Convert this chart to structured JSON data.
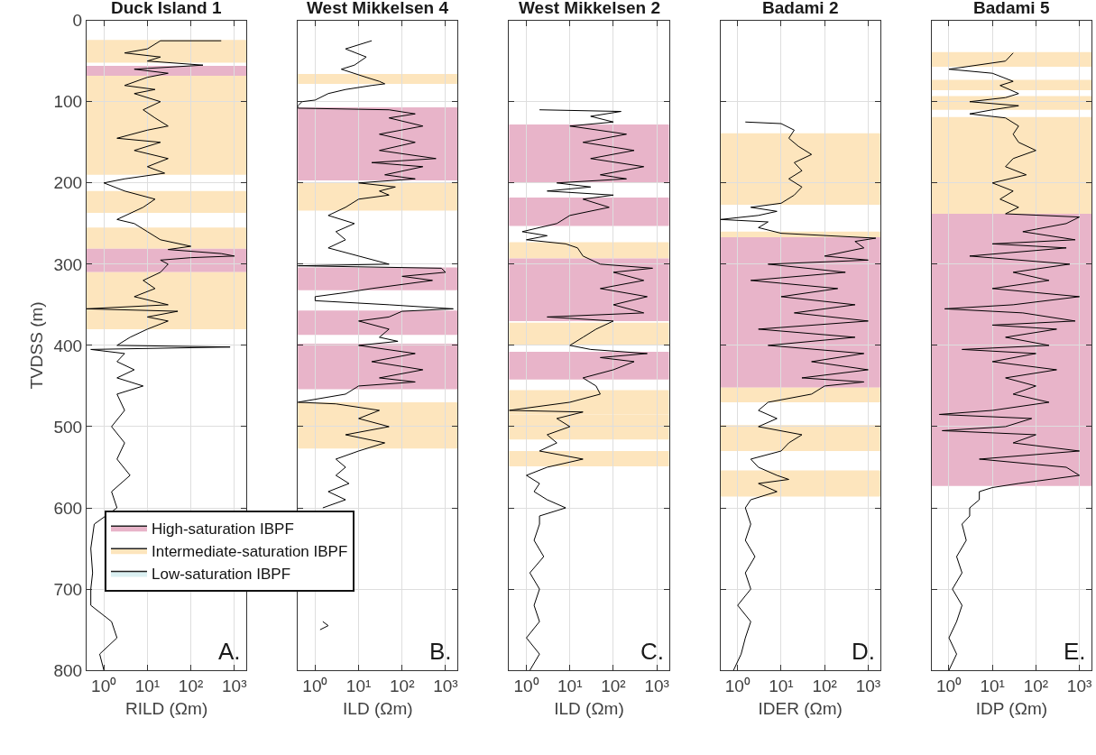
{
  "chart_data": [
    {
      "type": "line",
      "title": "Duck Island 1",
      "xlabel": "RILD (Ωm)",
      "ylabel": "TVDSS (m)",
      "xlim": [
        0.4,
        1900
      ],
      "xticks": [
        {
          "value": 1,
          "label": "10⁰"
        },
        {
          "value": 10,
          "label": "10¹"
        },
        {
          "value": 100,
          "label": "10²"
        },
        {
          "value": 1000,
          "label": "10³"
        }
      ],
      "ylim": [
        800,
        0
      ],
      "yticks": [
        0,
        100,
        200,
        300,
        400,
        500,
        600,
        700,
        800
      ],
      "log": "x",
      "grid": true,
      "legend": "bottom right",
      "annotations": [
        "A."
      ],
      "series": [
        {
          "color": "#000000",
          "x": [
            500,
            20,
            10,
            3,
            20,
            10,
            190,
            5,
            30,
            10,
            3,
            15,
            5,
            20,
            8,
            15,
            30,
            10,
            2,
            20,
            5,
            30,
            10,
            25,
            3,
            1,
            3,
            15,
            8,
            2,
            5,
            10,
            20,
            100,
            30,
            500,
            1000,
            100,
            20,
            30,
            20,
            8,
            15,
            5,
            30,
            0.4,
            50,
            10,
            30,
            10,
            4,
            2,
            800,
            0.5,
            3,
            2,
            5,
            2,
            8,
            2,
            3,
            1.5,
            3,
            2,
            4,
            1.5,
            2,
            0.6,
            0.5,
            0.55,
            0.5,
            0.5,
            1.5,
            2,
            0.8,
            1
          ],
          "values": [
            25,
            25,
            35,
            40,
            45,
            50,
            55,
            60,
            65,
            70,
            80,
            85,
            90,
            100,
            110,
            120,
            130,
            135,
            145,
            150,
            160,
            170,
            180,
            188,
            195,
            200,
            210,
            220,
            230,
            245,
            250,
            260,
            270,
            278,
            282,
            287,
            290,
            292,
            295,
            300,
            310,
            320,
            330,
            340,
            350,
            355,
            358,
            365,
            370,
            380,
            390,
            400,
            402,
            405,
            410,
            420,
            430,
            440,
            450,
            460,
            480,
            500,
            520,
            540,
            560,
            580,
            600,
            620,
            650,
            680,
            700,
            720,
            740,
            760,
            780,
            800
          ]
        },
        {
          "type": "area",
          "name": "High-saturation IBPF",
          "color": "#e8b4c9"
        },
        {
          "type": "area",
          "name": "Intermediate-saturation IBPF",
          "color": "#fde5bd"
        },
        {
          "type": "area",
          "name": "Low-saturation IBPF",
          "color": "#dbf0f2"
        }
      ],
      "bands": [
        {
          "axis": "y",
          "from": 24,
          "to": 52,
          "color": "#fde5bd"
        },
        {
          "axis": "y",
          "from": 56,
          "to": 68,
          "color": "#e8b4c9"
        },
        {
          "axis": "y",
          "from": 68,
          "to": 190,
          "color": "#fde5bd"
        },
        {
          "axis": "y",
          "from": 210,
          "to": 237,
          "color": "#fde5bd"
        },
        {
          "axis": "y",
          "from": 255,
          "to": 281,
          "color": "#fde5bd"
        },
        {
          "axis": "y",
          "from": 281,
          "to": 310,
          "color": "#e8b4c9"
        },
        {
          "axis": "y",
          "from": 310,
          "to": 380,
          "color": "#fde5bd"
        }
      ]
    },
    {
      "type": "line",
      "title": "West Mikkelsen 4",
      "xlabel": "ILD (Ωm)",
      "xlim": [
        0.4,
        1900
      ],
      "xticks": [
        {
          "value": 1,
          "label": "10⁰"
        },
        {
          "value": 10,
          "label": "10¹"
        },
        {
          "value": 100,
          "label": "10²"
        },
        {
          "value": 1000,
          "label": "10³"
        }
      ],
      "ylim": [
        800,
        0
      ],
      "yticks": [
        0,
        100,
        200,
        300,
        400,
        500,
        600,
        700,
        800
      ],
      "log": "x",
      "grid": true,
      "tick_labels": "x",
      "annotations": [
        "B."
      ],
      "series": [
        {
          "color": "#000000",
          "x": [
            20,
            5,
            15,
            8,
            4,
            15,
            30,
            40,
            20,
            5,
            2,
            1,
            0.5,
            0.4,
            0.4,
            50,
            200,
            50,
            300,
            30,
            200,
            30,
            600,
            20,
            300,
            40,
            200,
            10,
            70,
            30,
            50,
            10,
            5,
            2,
            8,
            3,
            5,
            2,
            10,
            50,
            0.4,
            800,
            1000,
            100,
            500,
            20,
            5,
            1,
            1,
            50,
            1500,
            100,
            50,
            10,
            50,
            30,
            80,
            10,
            200,
            20,
            300,
            30,
            200,
            10,
            5,
            0.4,
            3,
            30,
            10,
            50,
            5,
            40,
            10,
            3,
            5,
            3,
            6,
            2,
            5,
            1.5,
            null,
            1.5,
            2,
            1.3
          ],
          "values": [
            25,
            35,
            45,
            55,
            60,
            70,
            75,
            78,
            80,
            85,
            90,
            98,
            100,
            105,
            108,
            110,
            115,
            120,
            130,
            140,
            150,
            160,
            170,
            175,
            180,
            190,
            195,
            200,
            205,
            210,
            215,
            220,
            230,
            240,
            250,
            260,
            270,
            280,
            290,
            300,
            302,
            305,
            310,
            315,
            320,
            330,
            335,
            340,
            345,
            350,
            355,
            358,
            365,
            370,
            380,
            390,
            395,
            400,
            410,
            420,
            430,
            440,
            445,
            450,
            460,
            470,
            472,
            480,
            490,
            500,
            510,
            520,
            530,
            540,
            550,
            560,
            570,
            580,
            590,
            600,
            null,
            740,
            745,
            750
          ]
        }
      ],
      "bands": [
        {
          "axis": "y",
          "from": 66,
          "to": 78,
          "color": "#fde5bd"
        },
        {
          "axis": "y",
          "from": 107,
          "to": 197,
          "color": "#e8b4c9"
        },
        {
          "axis": "y",
          "from": 200,
          "to": 234,
          "color": "#fde5bd"
        },
        {
          "axis": "y",
          "from": 304,
          "to": 332,
          "color": "#e8b4c9"
        },
        {
          "axis": "y",
          "from": 357,
          "to": 387,
          "color": "#e8b4c9"
        },
        {
          "axis": "y",
          "from": 398,
          "to": 454,
          "color": "#e8b4c9"
        },
        {
          "axis": "y",
          "from": 470,
          "to": 527,
          "color": "#fde5bd"
        }
      ]
    },
    {
      "type": "line",
      "title": "West Mikkelsen 2",
      "xlabel": "ILD (Ωm)",
      "xlim": [
        0.4,
        1900
      ],
      "xticks": [
        {
          "value": 1,
          "label": "10⁰"
        },
        {
          "value": 10,
          "label": "10¹"
        },
        {
          "value": 100,
          "label": "10²"
        },
        {
          "value": 1000,
          "label": "10³"
        }
      ],
      "ylim": [
        800,
        0
      ],
      "yticks": [
        0,
        100,
        200,
        300,
        400,
        500,
        600,
        700,
        800
      ],
      "log": "x",
      "grid": true,
      "tick_labels": "x",
      "annotations": [
        "C."
      ],
      "series": [
        {
          "color": "#000000",
          "x": [
            2,
            150,
            30,
            100,
            10,
            200,
            20,
            300,
            30,
            500,
            50,
            200,
            5,
            30,
            3,
            100,
            20,
            80,
            10,
            5,
            2,
            0.8,
            3,
            1,
            8,
            15,
            20,
            50,
            800,
            100,
            500,
            50,
            600,
            100,
            500,
            3,
            100,
            40,
            20,
            10,
            30,
            600,
            50,
            300,
            100,
            20,
            40,
            50,
            10,
            0.4,
            20,
            5,
            10,
            3,
            5,
            2,
            20,
            3,
            1,
            2,
            1.5,
            3,
            8,
            2,
            2,
            1.5,
            2.5,
            1.2,
            2,
            1.5,
            2,
            1,
            2,
            1.2
          ],
          "values": [
            110,
            112,
            118,
            125,
            130,
            140,
            150,
            160,
            170,
            180,
            190,
            195,
            200,
            205,
            210,
            215,
            220,
            230,
            240,
            250,
            255,
            260,
            265,
            270,
            275,
            280,
            290,
            300,
            305,
            310,
            320,
            330,
            340,
            350,
            360,
            365,
            370,
            380,
            390,
            400,
            405,
            410,
            415,
            420,
            430,
            440,
            450,
            460,
            470,
            480,
            482,
            490,
            500,
            510,
            520,
            530,
            540,
            550,
            560,
            570,
            580,
            590,
            600,
            610,
            620,
            640,
            660,
            680,
            700,
            720,
            740,
            760,
            780,
            800
          ]
        }
      ],
      "bands": [
        {
          "axis": "y",
          "from": 128,
          "to": 199,
          "color": "#e8b4c9"
        },
        {
          "axis": "y",
          "from": 218,
          "to": 253,
          "color": "#e8b4c9"
        },
        {
          "axis": "y",
          "from": 273,
          "to": 293,
          "color": "#fde5bd"
        },
        {
          "axis": "y",
          "from": 293,
          "to": 370,
          "color": "#e8b4c9"
        },
        {
          "axis": "y",
          "from": 372,
          "to": 400,
          "color": "#fde5bd"
        },
        {
          "axis": "y",
          "from": 408,
          "to": 442,
          "color": "#e8b4c9"
        },
        {
          "axis": "y",
          "from": 455,
          "to": 485,
          "color": "#fde5bd"
        },
        {
          "axis": "y",
          "from": 485,
          "to": 516,
          "color": "#fde5bd"
        },
        {
          "axis": "y",
          "from": 530,
          "to": 549,
          "color": "#fde5bd"
        }
      ]
    },
    {
      "type": "line",
      "title": "Badami 2",
      "xlabel": "IDER (Ωm)",
      "xlim": [
        0.4,
        1900
      ],
      "xticks": [
        {
          "value": 1,
          "label": "10⁰"
        },
        {
          "value": 10,
          "label": "10¹"
        },
        {
          "value": 100,
          "label": "10²"
        },
        {
          "value": 1000,
          "label": "10³"
        }
      ],
      "ylim": [
        800,
        0
      ],
      "yticks": [
        0,
        100,
        200,
        300,
        400,
        500,
        600,
        700,
        800
      ],
      "log": "x",
      "grid": true,
      "tick_labels": "x",
      "annotations": [
        "D."
      ],
      "series": [
        {
          "color": "#000000",
          "x": [
            1.5,
            10,
            20,
            15,
            25,
            50,
            20,
            30,
            15,
            30,
            20,
            10,
            2,
            8,
            3,
            0.4,
            5,
            3,
            10,
            1500,
            500,
            800,
            100,
            1000,
            5,
            300,
            2,
            200,
            10,
            500,
            20,
            1000,
            3,
            500,
            5,
            800,
            50,
            1000,
            30,
            800,
            100,
            50,
            5,
            3,
            8,
            3,
            30,
            15,
            10,
            2,
            3,
            8,
            15,
            3,
            8,
            2,
            1.5,
            2,
            1.5,
            2.5,
            1.5,
            2,
            1,
            2,
            1.5,
            1.2,
            0.8
          ],
          "values": [
            125,
            127,
            135,
            145,
            155,
            165,
            175,
            185,
            195,
            205,
            215,
            225,
            230,
            235,
            240,
            245,
            248,
            255,
            262,
            268,
            272,
            280,
            290,
            295,
            300,
            310,
            320,
            330,
            340,
            350,
            360,
            370,
            380,
            390,
            400,
            410,
            420,
            430,
            440,
            445,
            450,
            460,
            470,
            480,
            490,
            500,
            510,
            520,
            530,
            540,
            550,
            560,
            565,
            570,
            580,
            590,
            600,
            620,
            640,
            660,
            680,
            700,
            720,
            740,
            760,
            780,
            800
          ]
        }
      ],
      "bands": [
        {
          "axis": "y",
          "from": 139,
          "to": 227,
          "color": "#fde5bd"
        },
        {
          "axis": "y",
          "from": 260,
          "to": 267,
          "color": "#fde5bd"
        },
        {
          "axis": "y",
          "from": 267,
          "to": 452,
          "color": "#e8b4c9"
        },
        {
          "axis": "y",
          "from": 452,
          "to": 470,
          "color": "#fde5bd"
        },
        {
          "axis": "y",
          "from": 498,
          "to": 530,
          "color": "#fde5bd"
        },
        {
          "axis": "y",
          "from": 554,
          "to": 586,
          "color": "#fde5bd"
        }
      ]
    },
    {
      "type": "line",
      "title": "Badami 5",
      "xlabel": "IDP (Ωm)",
      "xlim": [
        0.4,
        1900
      ],
      "xticks": [
        {
          "value": 1,
          "label": "10⁰"
        },
        {
          "value": 10,
          "label": "10¹"
        },
        {
          "value": 100,
          "label": "10²"
        },
        {
          "value": 1000,
          "label": "10³"
        }
      ],
      "ylim": [
        800,
        0
      ],
      "yticks": [
        0,
        100,
        200,
        300,
        400,
        500,
        600,
        700,
        800
      ],
      "log": "x",
      "grid": true,
      "tick_labels": "x",
      "annotations": [
        "E."
      ],
      "series": [
        {
          "color": "#000000",
          "x": [
            30,
            20,
            1,
            10,
            30,
            15,
            40,
            20,
            3,
            40,
            10,
            3,
            20,
            40,
            30,
            40,
            100,
            30,
            20,
            60,
            10,
            30,
            15,
            40,
            20,
            1000,
            500,
            50,
            800,
            10,
            500,
            3,
            600,
            30,
            200,
            10,
            1000,
            30,
            0.8,
            50,
            800,
            10,
            300,
            20,
            200,
            2,
            100,
            10,
            300,
            20,
            100,
            30,
            200,
            10,
            0.6,
            80,
            20,
            0.7,
            100,
            30,
            1000,
            5,
            500,
            1000,
            40,
            10,
            5,
            5,
            3,
            3,
            2,
            2.5,
            1.5,
            2,
            1.2,
            2,
            1.5,
            1,
            1.5,
            1
          ],
          "values": [
            40,
            50,
            60,
            65,
            75,
            80,
            90,
            95,
            100,
            105,
            110,
            115,
            120,
            130,
            140,
            150,
            160,
            170,
            180,
            190,
            200,
            210,
            220,
            230,
            238,
            242,
            250,
            260,
            270,
            275,
            280,
            290,
            300,
            310,
            320,
            330,
            340,
            350,
            355,
            360,
            370,
            375,
            380,
            390,
            400,
            405,
            410,
            420,
            430,
            440,
            450,
            460,
            470,
            480,
            485,
            490,
            500,
            505,
            510,
            520,
            530,
            540,
            550,
            560,
            570,
            575,
            580,
            590,
            600,
            610,
            620,
            640,
            660,
            680,
            700,
            720,
            740,
            760,
            780,
            800
          ]
        }
      ],
      "bands": [
        {
          "axis": "y",
          "from": 39,
          "to": 57,
          "color": "#fde5bd"
        },
        {
          "axis": "y",
          "from": 73,
          "to": 86,
          "color": "#fde5bd"
        },
        {
          "axis": "y",
          "from": 93,
          "to": 110,
          "color": "#fde5bd"
        },
        {
          "axis": "y",
          "from": 119,
          "to": 238,
          "color": "#fde5bd"
        },
        {
          "axis": "y",
          "from": 238,
          "to": 573,
          "color": "#e8b4c9"
        }
      ]
    }
  ]
}
